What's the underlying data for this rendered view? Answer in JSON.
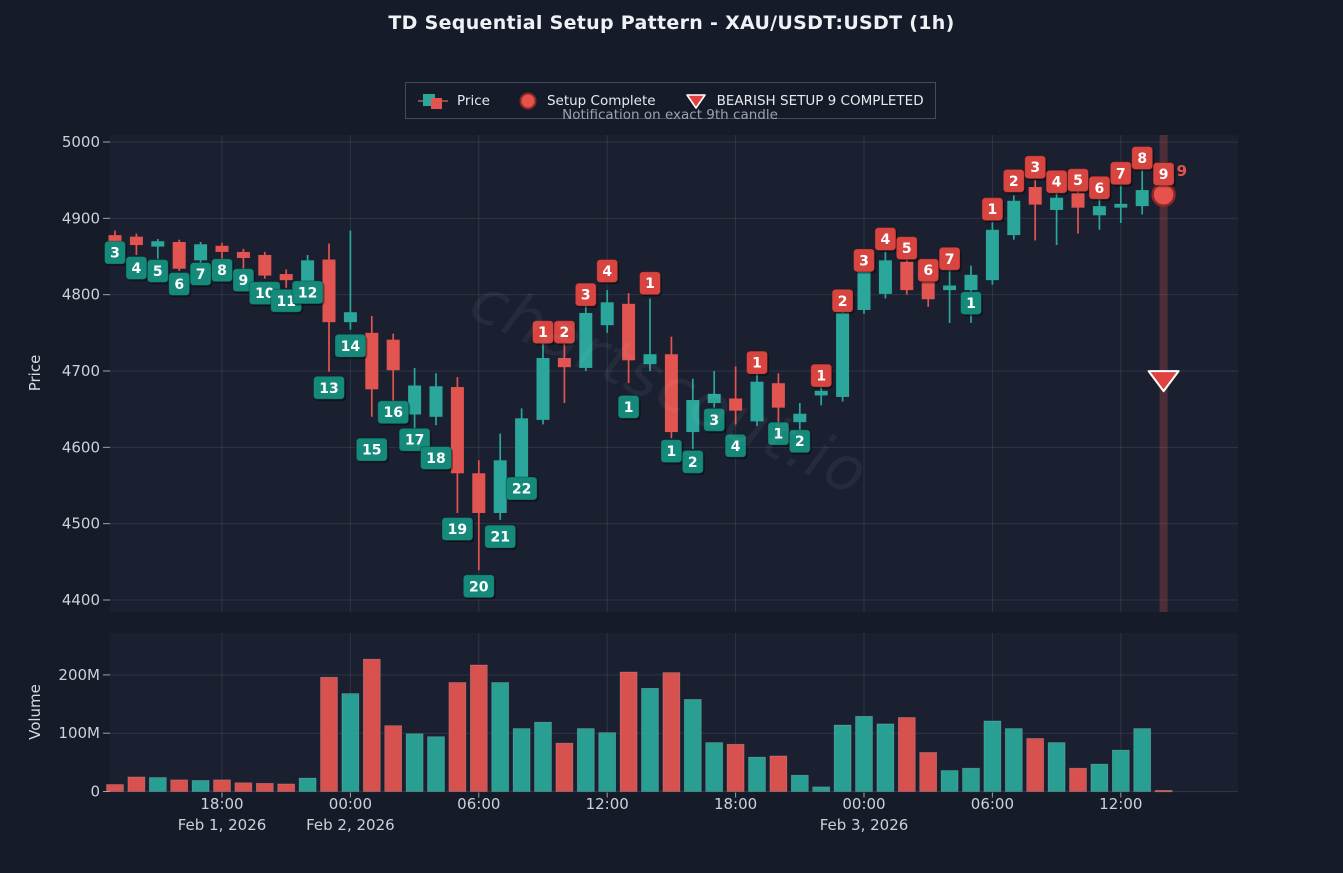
{
  "title": "TD Sequential Setup Pattern - XAU/USDT:USDT (1h)",
  "watermark": "chartscout.io",
  "legend": {
    "price_label": "Price",
    "setup_complete_label": "Setup Complete",
    "bearish_label": "BEARISH SETUP 9 COMPLETED",
    "note": "Notification on exact 9th candle"
  },
  "colors": {
    "background": "#151b28",
    "plot_background": "#1a2030",
    "grid": "rgba(255,255,255,0.09)",
    "text": "#ccd1da",
    "bull": "#2aa79a",
    "bear": "#e25450",
    "td_buy_box": "#15897a",
    "td_sell_box": "#d84440",
    "marker_red": "#e0433f",
    "marker_circle_fill": "#e6534e",
    "marker_circle_edge": "#8f2824",
    "highlight_band": "rgba(229,83,80,0.25)"
  },
  "chart_data": {
    "type": "candlestick+volume",
    "title": "TD Sequential Setup Pattern - XAU/USDT:USDT (1h)",
    "price_axis": {
      "label": "Price",
      "ticks": [
        5000,
        4900,
        4800,
        4700,
        4600,
        4500,
        4400
      ],
      "ylim": [
        4400,
        5000
      ]
    },
    "volume_axis": {
      "label": "Volume",
      "ticks": [
        {
          "label": "200M",
          "value": 200
        },
        {
          "label": "100M",
          "value": 100
        },
        {
          "label": "0",
          "value": 0
        }
      ],
      "ylim": [
        0,
        260
      ]
    },
    "x_axis": {
      "ticks": [
        {
          "time": "18:00",
          "date": "Feb 1, 2026",
          "candle_index": 5
        },
        {
          "time": "00:00",
          "date": "Feb 2, 2026",
          "candle_index": 11
        },
        {
          "time": "06:00",
          "candle_index": 17
        },
        {
          "time": "12:00",
          "candle_index": 23
        },
        {
          "time": "18:00",
          "candle_index": 29
        },
        {
          "time": "00:00",
          "date": "Feb 3, 2026",
          "candle_index": 35
        },
        {
          "time": "06:00",
          "candle_index": 41
        },
        {
          "time": "12:00",
          "candle_index": 47
        }
      ]
    },
    "candle_columns": [
      "open",
      "high",
      "low",
      "close",
      "volume_m",
      "td_side",
      "td_count",
      "td_label_price"
    ],
    "candles": [
      [
        4878,
        4884,
        4858,
        4869,
        12,
        "buy",
        3,
        4855
      ],
      [
        4876,
        4880,
        4852,
        4865,
        25,
        "buy",
        4,
        4835
      ],
      [
        4863,
        4873,
        4847,
        4870,
        24,
        "buy",
        5,
        4831
      ],
      [
        4869,
        4872,
        4831,
        4834,
        20,
        "buy",
        6,
        4814
      ],
      [
        4845,
        4869,
        4839,
        4866,
        19,
        "buy",
        7,
        4827
      ],
      [
        4864,
        4868,
        4842,
        4856,
        20,
        "buy",
        8,
        4832
      ],
      [
        4856,
        4860,
        4829,
        4848,
        15,
        "buy",
        9,
        4819
      ],
      [
        4852,
        4856,
        4821,
        4825,
        14,
        "buy",
        10,
        4802
      ],
      [
        4827,
        4833,
        4809,
        4819,
        13,
        "buy",
        11,
        4792
      ],
      [
        4816,
        4852,
        4811,
        4845,
        23,
        "buy",
        12,
        4803
      ],
      [
        4846,
        4867,
        4699,
        4764,
        196,
        "buy",
        13,
        4678
      ],
      [
        4764,
        4884,
        4754,
        4777,
        168,
        "buy",
        14,
        4733
      ],
      [
        4750,
        4772,
        4640,
        4676,
        227,
        "buy",
        15,
        4597
      ],
      [
        4741,
        4749,
        4648,
        4701,
        113,
        "buy",
        16,
        4646
      ],
      [
        4643,
        4704,
        4625,
        4681,
        99,
        "buy",
        17,
        4610
      ],
      [
        4640,
        4697,
        4629,
        4680,
        94,
        "buy",
        18,
        4586
      ],
      [
        4679,
        4692,
        4514,
        4566,
        187,
        "buy",
        19,
        4493
      ],
      [
        4566,
        4583,
        4439,
        4514,
        217,
        "buy",
        20,
        4418
      ],
      [
        4514,
        4618,
        4505,
        4583,
        187,
        "buy",
        21,
        4483
      ],
      [
        4561,
        4651,
        4556,
        4638,
        108,
        "buy",
        22,
        4546
      ],
      [
        4636,
        4747,
        4630,
        4717,
        119,
        "sell",
        1,
        4751
      ],
      [
        4717,
        4740,
        4658,
        4705,
        83,
        "sell",
        2,
        4751
      ],
      [
        4704,
        4789,
        4700,
        4776,
        108,
        "sell",
        3,
        4800
      ],
      [
        4760,
        4806,
        4750,
        4790,
        101,
        "sell",
        4,
        4831
      ],
      [
        4788,
        4802,
        4684,
        4714,
        205,
        "buy",
        1,
        4653
      ],
      [
        4709,
        4795,
        4700,
        4722,
        177,
        "sell",
        1,
        4815
      ],
      [
        4722,
        4745,
        4612,
        4620,
        204,
        "buy",
        1,
        4595
      ],
      [
        4620,
        4690,
        4598,
        4662,
        158,
        "buy",
        2,
        4581
      ],
      [
        4658,
        4700,
        4652,
        4670,
        84,
        "buy",
        3,
        4636
      ],
      [
        4664,
        4706,
        4630,
        4648,
        81,
        "buy",
        4,
        4602
      ],
      [
        4634,
        4702,
        4628,
        4686,
        59,
        "sell",
        1,
        4711
      ],
      [
        4684,
        4697,
        4630,
        4652,
        61,
        "buy",
        1,
        4618
      ],
      [
        4633,
        4658,
        4622,
        4644,
        28,
        "buy",
        2,
        4608
      ],
      [
        4668,
        4690,
        4655,
        4674,
        8,
        "sell",
        1,
        4694
      ],
      [
        4666,
        4788,
        4660,
        4776,
        114,
        "sell",
        2,
        4792
      ],
      [
        4780,
        4852,
        4775,
        4835,
        129,
        "sell",
        3,
        4845
      ],
      [
        4801,
        4856,
        4795,
        4845,
        116,
        "sell",
        4,
        4873
      ],
      [
        4843,
        4853,
        4800,
        4806,
        127,
        "sell",
        5,
        4861
      ],
      [
        4817,
        4824,
        4784,
        4794,
        67,
        "sell",
        6,
        4832
      ],
      [
        4806,
        4843,
        4763,
        4812,
        36,
        "sell",
        7,
        4847
      ],
      [
        4806,
        4838,
        4763,
        4826,
        40,
        "buy",
        1,
        4789
      ],
      [
        4819,
        4895,
        4813,
        4885,
        121,
        "sell",
        1,
        4912
      ],
      [
        4878,
        4930,
        4872,
        4923,
        108,
        "sell",
        2,
        4949
      ],
      [
        4941,
        4950,
        4871,
        4918,
        91,
        "sell",
        3,
        4967
      ],
      [
        4911,
        4938,
        4865,
        4927,
        84,
        "sell",
        4,
        4948
      ],
      [
        4933,
        4940,
        4880,
        4914,
        40,
        "sell",
        5,
        4950
      ],
      [
        4904,
        4925,
        4885,
        4916,
        47,
        "sell",
        6,
        4940
      ],
      [
        4914,
        4943,
        4894,
        4919,
        71,
        "sell",
        7,
        4959
      ],
      [
        4916,
        4963,
        4905,
        4937,
        108,
        "sell",
        8,
        4979
      ],
      [
        4944,
        4952,
        4920,
        4931,
        2,
        "sell",
        9,
        4958
      ]
    ],
    "markers": {
      "setup_complete_circle": {
        "candle_index": 49,
        "price": 4931
      },
      "bearish_triangle": {
        "candle_index": 49,
        "price": 4688
      },
      "highlight_band": {
        "candle_index": 49
      },
      "count_annotation": {
        "text": "9",
        "price": 4962
      }
    },
    "grid": true,
    "legend_position": "top-center"
  }
}
